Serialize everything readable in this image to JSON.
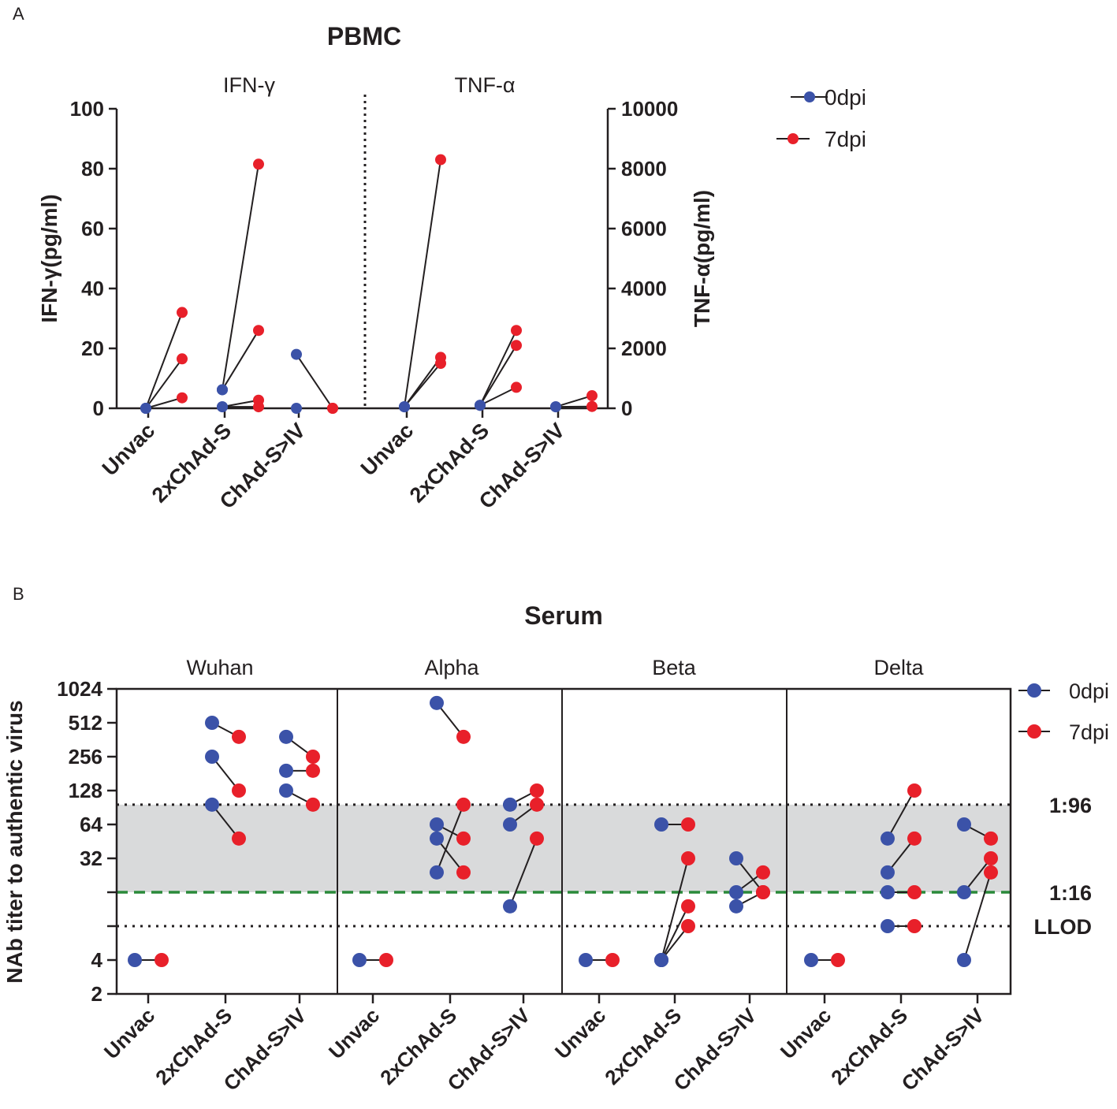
{
  "colors": {
    "blue": "#3b52a8",
    "red": "#e8202a",
    "shade": "#d9dadb",
    "green": "#2a8a3a",
    "ink": "#231f20"
  },
  "panels": {
    "a_label": "A",
    "b_label": "B"
  },
  "chart_data": [
    {
      "id": "pbmc",
      "type": "scatter",
      "title": "PBMC",
      "subpanels": [
        "IFN-γ",
        "TNF-α"
      ],
      "ylabel_left": "IFN-γ(pg/ml)",
      "ylabel_right": "TNF-α(pg/ml)",
      "ylim_left": [
        0,
        100
      ],
      "ylim_right": [
        0,
        10000
      ],
      "yticks_left": [
        "0",
        "20",
        "40",
        "60",
        "80",
        "100"
      ],
      "yticks_right": [
        "0",
        "2000",
        "4000",
        "6000",
        "8000",
        "10000"
      ],
      "categories": [
        "Unvac",
        "2xChAd-S",
        "ChAd-S>IV",
        "Unvac",
        "2xChAd-S",
        "ChAd-S>IV"
      ],
      "legend": [
        {
          "name": "0dpi",
          "color": "#3b52a8"
        },
        {
          "name": "7dpi",
          "color": "#e8202a"
        }
      ],
      "pairs": [
        {
          "group": 0,
          "d0": 0,
          "d7": 32
        },
        {
          "group": 0,
          "d0": 0,
          "d7": 16.5
        },
        {
          "group": 0,
          "d0": 0,
          "d7": 3.5
        },
        {
          "group": 1,
          "d0": 6.2,
          "d7": 81.5
        },
        {
          "group": 1,
          "d0": 6.2,
          "d7": 26
        },
        {
          "group": 1,
          "d0": 0.5,
          "d7": 2.7
        },
        {
          "group": 1,
          "d0": 0.5,
          "d7": 0.5
        },
        {
          "group": 2,
          "d0": 18,
          "d7": 0
        },
        {
          "group": 2,
          "d0": 0,
          "d7": 0
        },
        {
          "group": 3,
          "d0": 50,
          "d7": 8300
        },
        {
          "group": 3,
          "d0": 50,
          "d7": 1700
        },
        {
          "group": 3,
          "d0": 50,
          "d7": 1500
        },
        {
          "group": 4,
          "d0": 100,
          "d7": 2600
        },
        {
          "group": 4,
          "d0": 100,
          "d7": 2100
        },
        {
          "group": 4,
          "d0": 100,
          "d7": 700
        },
        {
          "group": 5,
          "d0": 50,
          "d7": 420
        },
        {
          "group": 5,
          "d0": 50,
          "d7": 60
        }
      ]
    },
    {
      "id": "serum",
      "type": "scatter",
      "title": "Serum",
      "ylabel": "NAb titer to authentic virus",
      "yscale": "log2",
      "ylim": [
        2,
        1024
      ],
      "yticks": [
        "2",
        "4",
        "32",
        "64",
        "128",
        "256",
        "512",
        "1024"
      ],
      "variants": [
        "Wuhan",
        "Alpha",
        "Beta",
        "Delta"
      ],
      "categories": [
        "Unvac",
        "2xChAd-S",
        "ChAd-S>IV"
      ],
      "reference_lines": [
        {
          "label": "1:96",
          "value": 96,
          "style": "dotted"
        },
        {
          "label": "1:16",
          "value": 16,
          "style": "dashed-green"
        },
        {
          "label": "LLOD",
          "value": 8,
          "style": "dotted"
        }
      ],
      "shaded_band": [
        16,
        96
      ],
      "legend": [
        {
          "name": "0dpi",
          "color": "#3b52a8"
        },
        {
          "name": "7dpi",
          "color": "#e8202a"
        }
      ],
      "pairs": {
        "Wuhan": [
          {
            "group": 0,
            "d0": 4,
            "d7": 4
          },
          {
            "group": 1,
            "d0": 512,
            "d7": 384
          },
          {
            "group": 1,
            "d0": 256,
            "d7": 128
          },
          {
            "group": 1,
            "d0": 96,
            "d7": 48
          },
          {
            "group": 2,
            "d0": 384,
            "d7": 256
          },
          {
            "group": 2,
            "d0": 192,
            "d7": 192
          },
          {
            "group": 2,
            "d0": 128,
            "d7": 96
          }
        ],
        "Alpha": [
          {
            "group": 0,
            "d0": 4,
            "d7": 4
          },
          {
            "group": 1,
            "d0": 768,
            "d7": 384
          },
          {
            "group": 1,
            "d0": 64,
            "d7": 48
          },
          {
            "group": 1,
            "d0": 48,
            "d7": 24
          },
          {
            "group": 1,
            "d0": 24,
            "d7": 96
          },
          {
            "group": 2,
            "d0": 96,
            "d7": 128
          },
          {
            "group": 2,
            "d0": 64,
            "d7": 96
          },
          {
            "group": 2,
            "d0": 12,
            "d7": 48
          }
        ],
        "Beta": [
          {
            "group": 0,
            "d0": 4,
            "d7": 4
          },
          {
            "group": 1,
            "d0": 64,
            "d7": 64
          },
          {
            "group": 1,
            "d0": 4,
            "d7": 32
          },
          {
            "group": 1,
            "d0": 4,
            "d7": 12
          },
          {
            "group": 1,
            "d0": 4,
            "d7": 8
          },
          {
            "group": 2,
            "d0": 32,
            "d7": 16
          },
          {
            "group": 2,
            "d0": 16,
            "d7": 24
          },
          {
            "group": 2,
            "d0": 12,
            "d7": 16
          }
        ],
        "Delta": [
          {
            "group": 0,
            "d0": 4,
            "d7": 4
          },
          {
            "group": 1,
            "d0": 48,
            "d7": 128
          },
          {
            "group": 1,
            "d0": 24,
            "d7": 48
          },
          {
            "group": 1,
            "d0": 16,
            "d7": 16
          },
          {
            "group": 1,
            "d0": 8,
            "d7": 8
          },
          {
            "group": 2,
            "d0": 64,
            "d7": 48
          },
          {
            "group": 2,
            "d0": 16,
            "d7": 32
          },
          {
            "group": 2,
            "d0": 4,
            "d7": 24
          }
        ]
      }
    }
  ]
}
